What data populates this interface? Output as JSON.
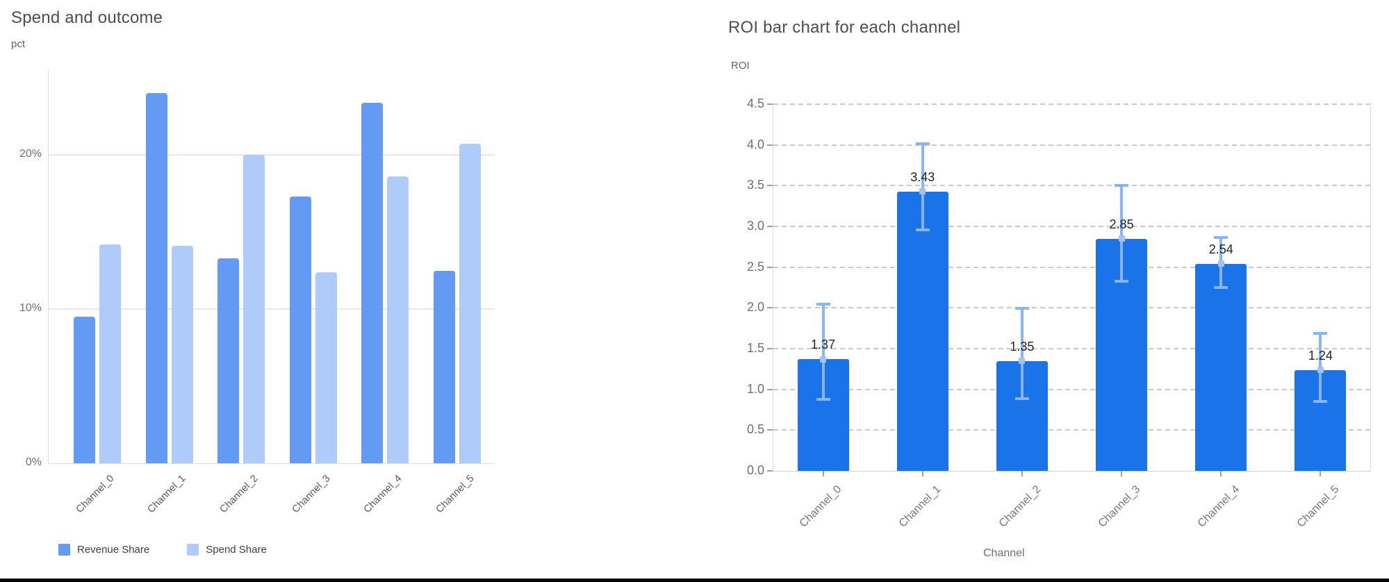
{
  "colors": {
    "revenue_share": "#639af3",
    "spend_share": "#aecbfa",
    "roi_bar": "#1a73e8",
    "error_bar": "#8ab4f8",
    "mean_marker": "#a4c2f7"
  },
  "chart_data": [
    {
      "id": "spend-and-outcome",
      "type": "bar",
      "title": "Spend and outcome",
      "ylabel": "pct",
      "xlabel": "",
      "categories": [
        "Channel_0",
        "Channel_1",
        "Channel_2",
        "Channel_3",
        "Channel_4",
        "Channel_5"
      ],
      "series": [
        {
          "name": "Revenue Share",
          "color": "#639af3",
          "values": [
            9.5,
            24.0,
            13.3,
            17.3,
            23.4,
            12.5
          ]
        },
        {
          "name": "Spend Share",
          "color": "#aecbfa",
          "values": [
            14.2,
            14.1,
            20.0,
            12.4,
            18.6,
            20.7
          ]
        }
      ],
      "y_ticks": [
        {
          "value": 0,
          "label": "0%"
        },
        {
          "value": 10,
          "label": "10%"
        },
        {
          "value": 20,
          "label": "20%"
        }
      ],
      "ylim": [
        0,
        25.5
      ],
      "grid": "solid",
      "legend_position": "bottom"
    },
    {
      "id": "roi-by-channel",
      "type": "bar",
      "title": "ROI bar chart for each channel",
      "ylabel": "ROI",
      "xlabel": "Channel",
      "categories": [
        "Channel_0",
        "Channel_1",
        "Channel_2",
        "Channel_3",
        "Channel_4",
        "Channel_5"
      ],
      "values": [
        1.37,
        3.43,
        1.35,
        2.85,
        2.54,
        1.24
      ],
      "data_labels": [
        "1.37",
        "3.43",
        "1.35",
        "2.85",
        "2.54",
        "1.24"
      ],
      "error_low": [
        0.87,
        2.95,
        0.88,
        2.32,
        2.24,
        0.84
      ],
      "error_high": [
        2.05,
        4.02,
        2.0,
        3.51,
        2.87,
        1.7
      ],
      "y_ticks": [
        {
          "value": 0.0,
          "label": "0.0"
        },
        {
          "value": 0.5,
          "label": "0.5"
        },
        {
          "value": 1.0,
          "label": "1.0"
        },
        {
          "value": 1.5,
          "label": "1.5"
        },
        {
          "value": 2.0,
          "label": "2.0"
        },
        {
          "value": 2.5,
          "label": "2.5"
        },
        {
          "value": 3.0,
          "label": "3.0"
        },
        {
          "value": 3.5,
          "label": "3.5"
        },
        {
          "value": 4.0,
          "label": "4.0"
        },
        {
          "value": 4.5,
          "label": "4.5"
        }
      ],
      "ylim": [
        0,
        4.5
      ],
      "grid": "dashed",
      "legend_position": "none"
    }
  ]
}
